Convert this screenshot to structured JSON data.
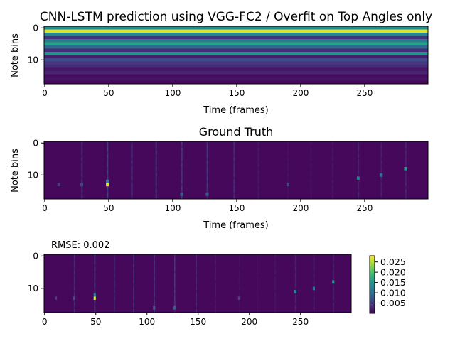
{
  "chart_data": [
    {
      "type": "heatmap",
      "title": "CNN-LSTM prediction using VGG-FC2 / Overfit on Top Angles only",
      "xlabel": "Time (frames)",
      "ylabel": "Note bins",
      "x_range": [
        0,
        299
      ],
      "y_range": [
        0,
        17
      ],
      "xticks": [
        "0",
        "50",
        "100",
        "150",
        "200",
        "250"
      ],
      "yticks": [
        "0",
        "10"
      ],
      "row_levels": [
        0.48,
        0.95,
        0.46,
        0.14,
        0.42,
        0.58,
        0.34,
        0.12,
        0.52,
        0.08,
        0.22,
        0.16,
        0.12,
        0.06,
        0.1,
        0.03,
        0.05,
        0.02
      ]
    },
    {
      "type": "heatmap",
      "title": "Ground Truth",
      "xlabel": "Time (frames)",
      "ylabel": "Note bins",
      "x_range": [
        0,
        299
      ],
      "y_range": [
        0,
        17
      ],
      "xticks": [
        "0",
        "50",
        "100",
        "150",
        "200",
        "250"
      ],
      "yticks": [
        "0",
        "10"
      ],
      "background_level": 0.02,
      "column_streaks": [
        {
          "frame": 29,
          "level": 0.12
        },
        {
          "frame": 49,
          "level": 0.2
        },
        {
          "frame": 68,
          "level": 0.14
        },
        {
          "frame": 87,
          "level": 0.15
        },
        {
          "frame": 107,
          "level": 0.16
        },
        {
          "frame": 127,
          "level": 0.17
        },
        {
          "frame": 148,
          "level": 0.13
        },
        {
          "frame": 167,
          "level": 0.07
        },
        {
          "frame": 190,
          "level": 0.05
        },
        {
          "frame": 208,
          "level": 0.05
        },
        {
          "frame": 225,
          "level": 0.06
        },
        {
          "frame": 245,
          "level": 0.1
        },
        {
          "frame": 263,
          "level": 0.09
        },
        {
          "frame": 282,
          "level": 0.1
        }
      ],
      "hot_cells": [
        {
          "frame": 49,
          "bin": 13,
          "level": 0.95
        },
        {
          "frame": 49,
          "bin": 12,
          "level": 0.45
        },
        {
          "frame": 245,
          "bin": 11,
          "level": 0.45
        },
        {
          "frame": 263,
          "bin": 10,
          "level": 0.38
        },
        {
          "frame": 282,
          "bin": 8,
          "level": 0.55
        },
        {
          "frame": 107,
          "bin": 16,
          "level": 0.3
        },
        {
          "frame": 127,
          "bin": 16,
          "level": 0.3
        },
        {
          "frame": 29,
          "bin": 13,
          "level": 0.25
        },
        {
          "frame": 190,
          "bin": 13,
          "level": 0.22
        },
        {
          "frame": 11,
          "bin": 13,
          "level": 0.2
        }
      ]
    },
    {
      "type": "heatmap",
      "title": "",
      "annotation": "RMSE: 0.002",
      "x_range": [
        0,
        299
      ],
      "y_range": [
        0,
        17
      ],
      "xticks": [
        "0",
        "50",
        "100",
        "150",
        "200",
        "250"
      ],
      "yticks": [
        "0",
        "10"
      ],
      "source": "same as Ground Truth panel"
    }
  ],
  "colorbar": {
    "ticks": [
      "0.005",
      "0.010",
      "0.015",
      "0.020",
      "0.025"
    ],
    "tick_values": [
      0.005,
      0.01,
      0.015,
      0.02,
      0.025
    ],
    "range": [
      0.0,
      0.028
    ],
    "colormap": [
      "#440154",
      "#482878",
      "#3e4989",
      "#31688e",
      "#26828e",
      "#1f9e89",
      "#35b779",
      "#6ece58",
      "#b5de2b",
      "#fde725"
    ]
  }
}
